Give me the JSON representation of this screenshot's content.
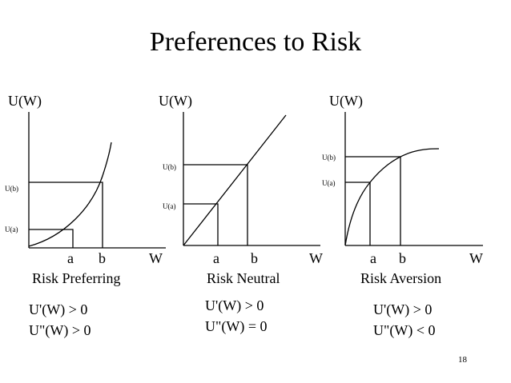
{
  "title": "Preferences to Risk",
  "page_number": "18",
  "panels": [
    {
      "ylabel": "U(W)",
      "xlabel": "W",
      "tick_a": "a",
      "tick_b": "b",
      "ua_label": "U(a)",
      "ub_label": "U(b)",
      "caption": "Risk Preferring",
      "cond1": "U'(W) > 0",
      "cond2": "U\"(W) > 0",
      "curve": "convex"
    },
    {
      "ylabel": "U(W)",
      "xlabel": "W",
      "tick_a": "a",
      "tick_b": "b",
      "ua_label": "U(a)",
      "ub_label": "U(b)",
      "caption": "Risk Neutral",
      "cond1": "U'(W) > 0",
      "cond2": "U\"(W) = 0",
      "curve": "linear"
    },
    {
      "ylabel": "U(W)",
      "xlabel": "W",
      "tick_a": "a",
      "tick_b": "b",
      "ua_label": "U(a)",
      "ub_label": "U(b)",
      "caption": "Risk Aversion",
      "cond1": "U'(W) > 0",
      "cond2": "U\"(W) < 0",
      "curve": "concave"
    }
  ]
}
